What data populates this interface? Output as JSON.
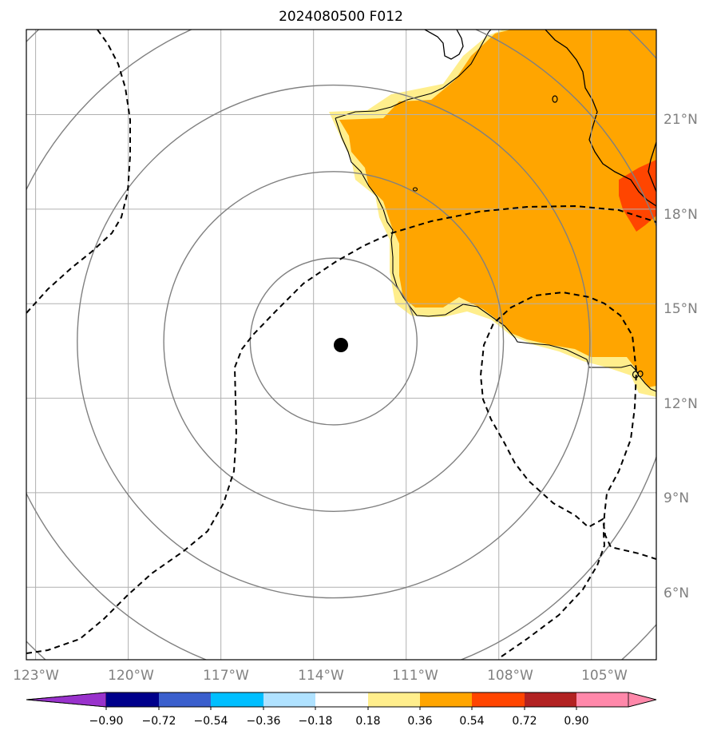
{
  "title": "2024080500 F012",
  "map": {
    "lon_range": [
      -123.3,
      -102.9
    ],
    "lat_range": [
      3.7,
      23.7
    ],
    "lon_ticks": [
      {
        "value": -123,
        "label": "123°W"
      },
      {
        "value": -120,
        "label": "120°W"
      },
      {
        "value": -117,
        "label": "117°W"
      },
      {
        "value": -114,
        "label": "114°W"
      },
      {
        "value": -111,
        "label": "111°W"
      },
      {
        "value": -108,
        "label": "108°W"
      },
      {
        "value": -105,
        "label": "105°W"
      }
    ],
    "lat_ticks": [
      {
        "value": 21,
        "label": "21°N"
      },
      {
        "value": 18,
        "label": "18°N"
      },
      {
        "value": 15,
        "label": "15°N"
      },
      {
        "value": 12,
        "label": "12°N"
      },
      {
        "value": 9,
        "label": "9°N"
      },
      {
        "value": 6,
        "label": "6°N"
      }
    ],
    "storm_center": {
      "lon": -113.35,
      "lat": 13.8
    },
    "range_rings_deg": [
      2.7,
      5.5,
      8.3,
      11.1,
      13.9
    ],
    "colors": {
      "orange": "#ffa500",
      "light_yellow": "#ffee8c",
      "red_orange": "#ff4500",
      "grid": "#b0b0b0",
      "ring": "#808080"
    }
  },
  "colorbar": {
    "ticks": [
      "−0.90",
      "−0.72",
      "−0.54",
      "−0.36",
      "−0.18",
      "0.18",
      "0.36",
      "0.54",
      "0.72",
      "0.90"
    ],
    "colors": [
      "#9932cc",
      "#00008b",
      "#3a5fcd",
      "#00bfff",
      "#b0e2ff",
      "#ffffff",
      "#ffee8c",
      "#ffa500",
      "#ff4500",
      "#b22222",
      "#ff88aa"
    ]
  }
}
